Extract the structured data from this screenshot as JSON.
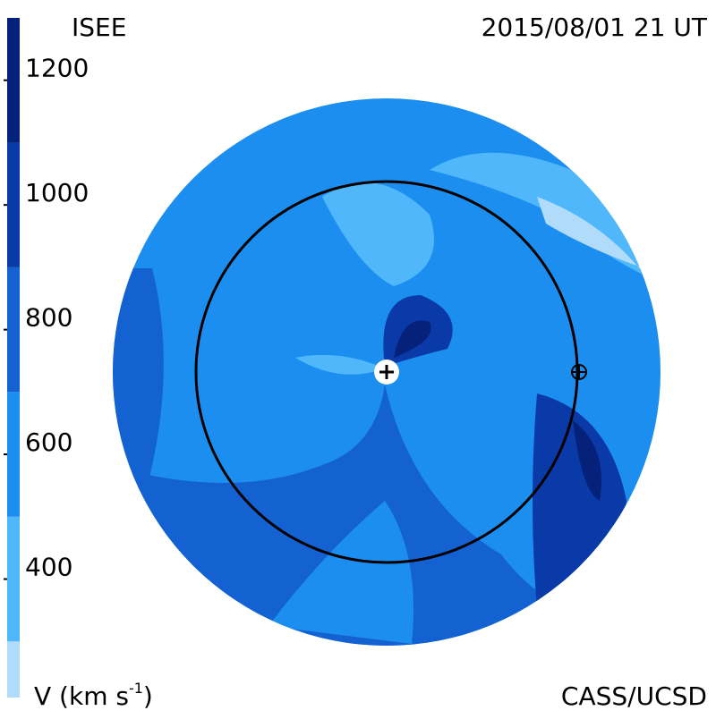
{
  "header": {
    "left": "ISEE",
    "right": "2015/08/01 21 UT"
  },
  "colorbar": {
    "range": [
      210,
      1300
    ],
    "ticks": [
      400,
      600,
      800,
      1000,
      1200
    ],
    "bands": [
      210,
      300,
      500,
      700,
      900,
      1100,
      1300
    ],
    "colors": [
      "#b0dcfa",
      "#50b8fa",
      "#1c8ef0",
      "#1462d2",
      "#0a3aa8",
      "#05217a"
    ],
    "label": "V (km s",
    "label_exponent": "-1",
    "label_end": ")"
  },
  "footer": {
    "right": "CASS/UCSD"
  }
}
